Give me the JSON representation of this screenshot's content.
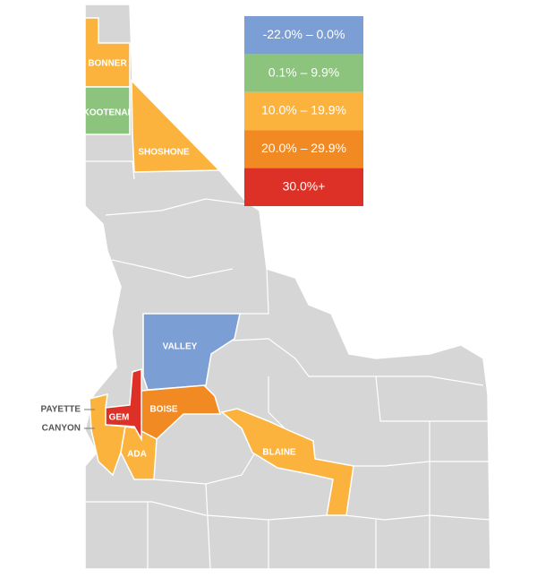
{
  "legend": [
    {
      "label": "-22.0% – 0.0%",
      "color": "#7b9fd4"
    },
    {
      "label": "0.1% – 9.9%",
      "color": "#8cc47e"
    },
    {
      "label": "10.0% – 19.9%",
      "color": "#fbb33e"
    },
    {
      "label": "20.0% – 29.9%",
      "color": "#f28a24"
    },
    {
      "label": "30.0%+",
      "color": "#dd3127"
    }
  ],
  "counties": [
    {
      "label": "BONNER",
      "color": "#fbb33e"
    },
    {
      "label": "KOOTENAI",
      "color": "#8cc47e"
    },
    {
      "label": "SHOSHONE",
      "color": "#fbb33e"
    },
    {
      "label": "VALLEY",
      "color": "#7b9fd4"
    },
    {
      "label": "BOISE",
      "color": "#f28a24"
    },
    {
      "label": "GEM",
      "color": "#dd3127"
    },
    {
      "label": "PAYETTE",
      "color": "#fbb33e"
    },
    {
      "label": "CANYON",
      "color": "#fbb33e"
    },
    {
      "label": "ADA",
      "color": "#fbb33e"
    },
    {
      "label": "BLAINE",
      "color": "#fbb33e"
    }
  ]
}
